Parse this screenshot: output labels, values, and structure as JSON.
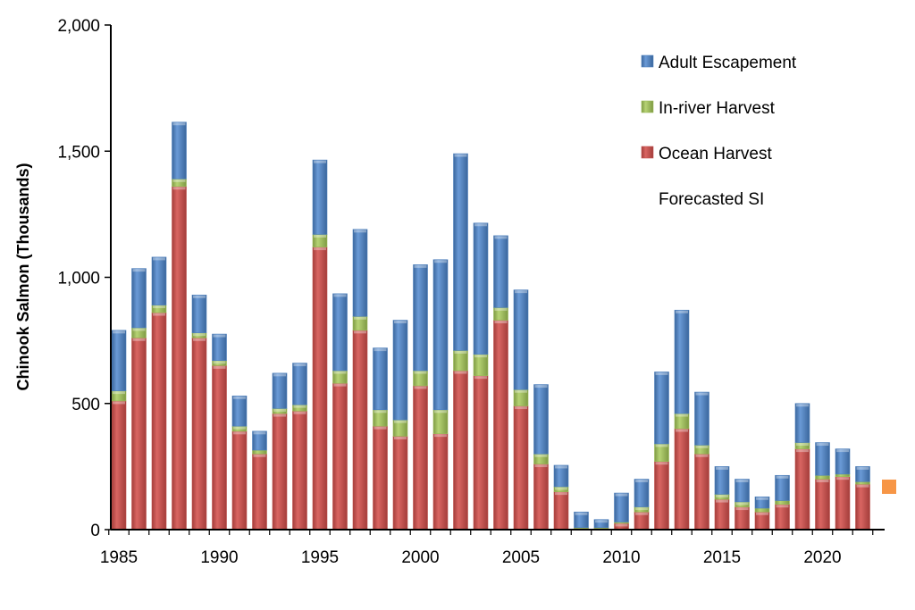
{
  "chart_data": {
    "type": "bar",
    "stacked": true,
    "title": "",
    "xlabel": "",
    "ylabel": "Chinook Salmon (Thousands)",
    "ylim": [
      0,
      2000
    ],
    "yticks": [
      "0",
      "500",
      "1,000",
      "1,500",
      "2,000"
    ],
    "ytick_values": [
      0,
      500,
      1000,
      1500,
      2000
    ],
    "xticks": [
      "1985",
      "1990",
      "1995",
      "2000",
      "2005",
      "2010",
      "2015",
      "2020"
    ],
    "xtick_values": [
      1985,
      1990,
      1995,
      2000,
      2005,
      2010,
      2015,
      2020
    ],
    "grid": false,
    "legend_position": "top-right",
    "categories": [
      1985,
      1986,
      1987,
      1988,
      1989,
      1990,
      1991,
      1992,
      1993,
      1994,
      1995,
      1996,
      1997,
      1998,
      1999,
      2000,
      2001,
      2002,
      2003,
      2004,
      2005,
      2006,
      2007,
      2008,
      2009,
      2010,
      2011,
      2012,
      2013,
      2014,
      2015,
      2016,
      2017,
      2018,
      2019,
      2020,
      2021,
      2022
    ],
    "series": [
      {
        "name": "Ocean Harvest",
        "color": "#c0504d",
        "values": [
          510,
          760,
          860,
          1360,
          760,
          650,
          390,
          300,
          460,
          470,
          1120,
          580,
          790,
          410,
          370,
          570,
          380,
          630,
          610,
          830,
          490,
          260,
          150,
          5,
          5,
          25,
          70,
          270,
          400,
          300,
          120,
          90,
          70,
          100,
          320,
          200,
          210,
          180
        ]
      },
      {
        "name": "In-river Harvest",
        "color": "#9bbb59",
        "values": [
          40,
          40,
          30,
          30,
          20,
          20,
          20,
          15,
          20,
          25,
          50,
          50,
          55,
          65,
          65,
          60,
          95,
          80,
          85,
          50,
          65,
          40,
          20,
          3,
          3,
          5,
          20,
          70,
          60,
          35,
          20,
          20,
          15,
          15,
          25,
          15,
          10,
          10
        ]
      },
      {
        "name": "Adult Escapement",
        "color": "#4f81bd",
        "values": [
          240,
          235,
          190,
          225,
          150,
          105,
          120,
          75,
          140,
          165,
          295,
          305,
          345,
          245,
          395,
          420,
          595,
          780,
          520,
          285,
          395,
          275,
          85,
          62,
          32,
          115,
          110,
          285,
          410,
          210,
          110,
          90,
          45,
          100,
          155,
          130,
          100,
          60
        ]
      }
    ],
    "forecast": {
      "name": "Forecasted SI",
      "color": "#f79646",
      "x": 2023,
      "value": 170
    },
    "legend": [
      "Adult Escapement",
      "In-river Harvest",
      "Ocean Harvest",
      "Forecasted SI"
    ]
  }
}
